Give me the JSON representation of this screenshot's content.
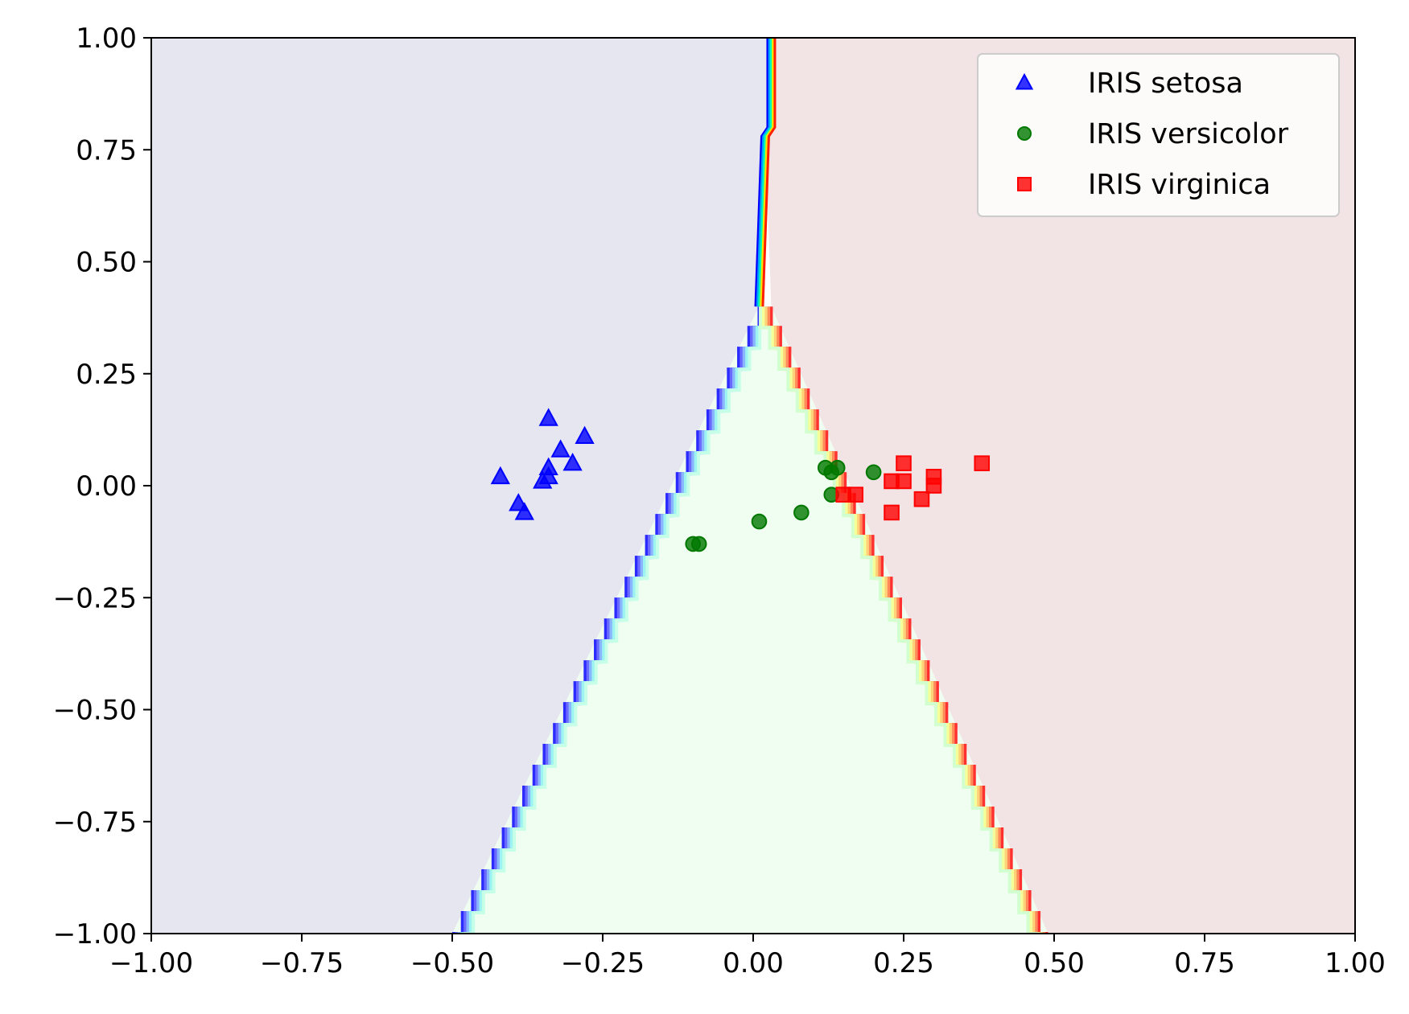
{
  "chart_data": {
    "type": "scatter",
    "title": "",
    "xlabel": "",
    "ylabel": "",
    "xlim": [
      -1.0,
      1.0
    ],
    "ylim": [
      -1.0,
      1.0
    ],
    "xticks": [
      -1.0,
      -0.75,
      -0.5,
      -0.25,
      0.0,
      0.25,
      0.5,
      0.75,
      1.0
    ],
    "yticks": [
      -1.0,
      -0.75,
      -0.5,
      -0.25,
      0.0,
      0.25,
      0.5,
      0.75,
      1.0
    ],
    "xtick_labels": [
      "−1.00",
      "−0.75",
      "−0.50",
      "−0.25",
      "0.00",
      "0.25",
      "0.50",
      "0.75",
      "1.00"
    ],
    "ytick_labels": [
      "−1.00",
      "−0.75",
      "−0.50",
      "−0.25",
      "0.00",
      "0.25",
      "0.50",
      "0.75",
      "1.00"
    ],
    "grid": false,
    "legend_position": "top-right",
    "decision_regions": {
      "colors": {
        "setosa": "#e6e6f1",
        "versicolor": "#effef0",
        "virginica": "#f2e4e4"
      },
      "setosa_versicolor_boundary": [
        [
          -0.5,
          -1.0
        ],
        [
          0.01,
          0.4
        ]
      ],
      "versicolor_virginica_boundary": [
        [
          0.03,
          0.4
        ],
        [
          0.49,
          -1.0
        ]
      ],
      "setosa_virginica_boundary": [
        [
          0.01,
          0.4
        ],
        [
          0.02,
          0.78
        ],
        [
          0.03,
          0.8
        ],
        [
          0.03,
          1.0
        ]
      ]
    },
    "series": [
      {
        "name": "IRIS setosa",
        "marker": "triangle",
        "color": "#0000ff",
        "points": [
          [
            -0.34,
            0.15
          ],
          [
            -0.28,
            0.11
          ],
          [
            -0.32,
            0.08
          ],
          [
            -0.3,
            0.05
          ],
          [
            -0.34,
            0.04
          ],
          [
            -0.34,
            0.02
          ],
          [
            -0.35,
            0.01
          ],
          [
            -0.42,
            0.02
          ],
          [
            -0.39,
            -0.04
          ],
          [
            -0.38,
            -0.06
          ]
        ]
      },
      {
        "name": "IRIS versicolor",
        "marker": "circle",
        "color": "#007800",
        "points": [
          [
            0.12,
            0.04
          ],
          [
            0.14,
            0.04
          ],
          [
            0.13,
            0.03
          ],
          [
            0.2,
            0.03
          ],
          [
            0.13,
            -0.02
          ],
          [
            0.08,
            -0.06
          ],
          [
            0.01,
            -0.08
          ],
          [
            -0.1,
            -0.13
          ],
          [
            -0.09,
            -0.13
          ]
        ]
      },
      {
        "name": "IRIS virginica",
        "marker": "square",
        "color": "#ff0000",
        "points": [
          [
            0.25,
            0.05
          ],
          [
            0.38,
            0.05
          ],
          [
            0.3,
            0.02
          ],
          [
            0.23,
            0.01
          ],
          [
            0.25,
            0.01
          ],
          [
            0.3,
            0.0
          ],
          [
            0.15,
            -0.02
          ],
          [
            0.17,
            -0.02
          ],
          [
            0.28,
            -0.03
          ],
          [
            0.23,
            -0.06
          ]
        ]
      }
    ]
  }
}
